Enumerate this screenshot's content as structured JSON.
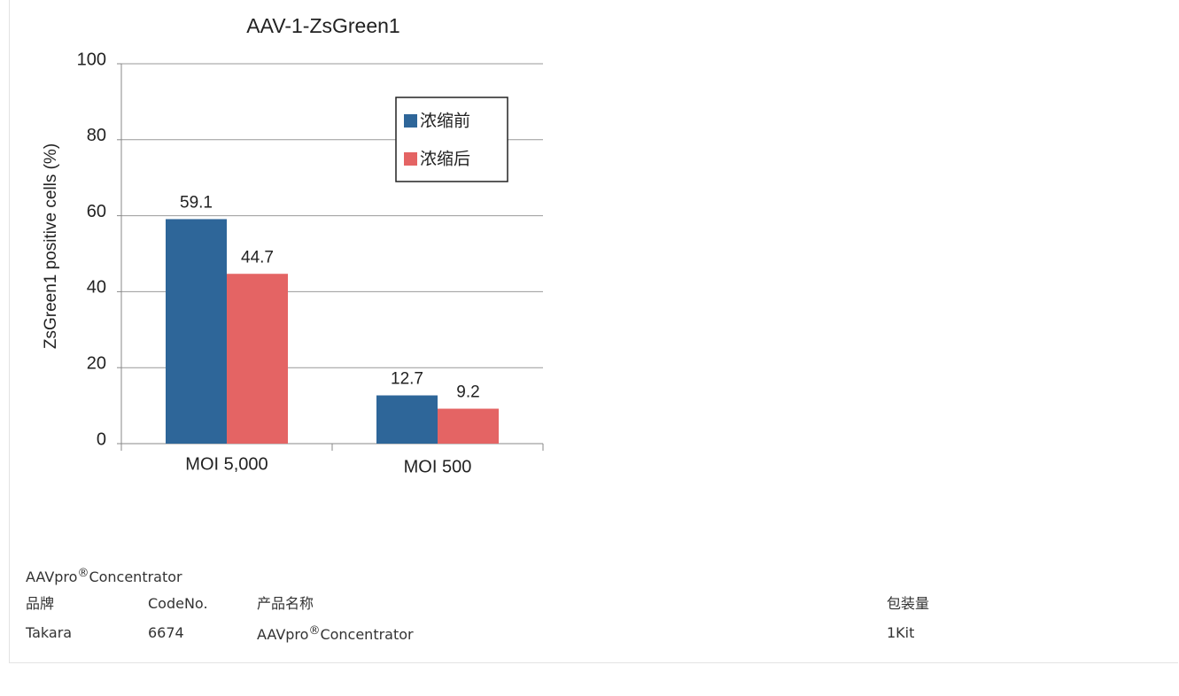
{
  "chart_data": {
    "type": "bar",
    "title": "AAV-1-ZsGreen1",
    "y_label": "ZsGreen1 positive cells (%)",
    "categories": [
      "MOI 5,000",
      "MOI 500"
    ],
    "series": [
      {
        "name": "浓缩前",
        "color": "#2e6699",
        "values": [
          59.1,
          12.7
        ]
      },
      {
        "name": "浓缩后",
        "color": "#e46464",
        "values": [
          44.7,
          9.2
        ]
      }
    ],
    "ylim": [
      0,
      100
    ],
    "yticks": [
      0,
      20,
      40,
      60,
      80,
      100
    ],
    "grid": true,
    "legend": "upper right"
  },
  "product_name": [
    "AAVpro",
    "®",
    "Concentrator"
  ],
  "table": {
    "header": [
      "品牌",
      "CodeNo.",
      "产品名称",
      "包装量"
    ],
    "rows": [
      [
        "Takara",
        "6674",
        [
          "AAVpro",
          "®",
          "Concentrator"
        ],
        "1Kit"
      ]
    ]
  }
}
